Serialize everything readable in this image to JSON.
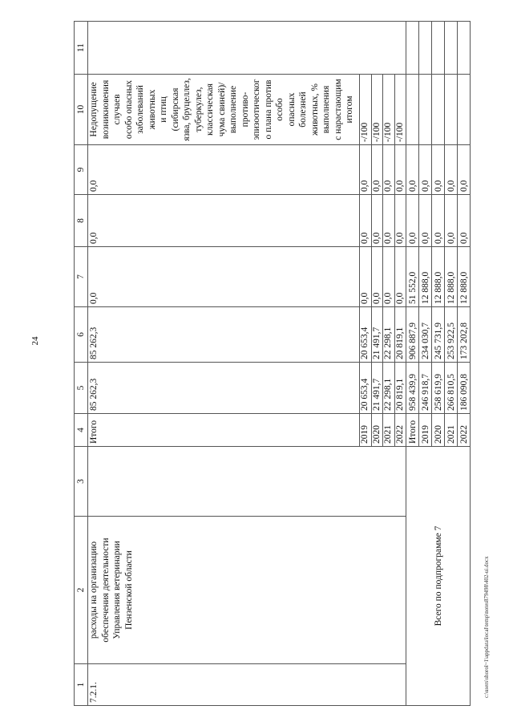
{
  "page_number": "24",
  "header": [
    "1",
    "2",
    "3",
    "4",
    "5",
    "6",
    "7",
    "8",
    "9",
    "10",
    "11"
  ],
  "item": {
    "code": "7.2.1.",
    "name": "расходы на организацию\nобеспечения деятельности\nУправления ветеринарии\nПензенской области",
    "col3": "",
    "total_label": "Итого",
    "total_values": [
      "85 262,3",
      "85 262,3",
      "0,0",
      "0,0",
      "0,0"
    ],
    "indicator": "Недопущение\nвозникновения\nслучаев\nособо опасных\nзаболеваний\nживотных\nи птиц\n(сибирская\nязва, бруцеллез,\nтуберкулез,\nклассическая\nчума свиней)/\nвыполнение\nпротиво-\nэпизоотическог\nо плана против\nособо\nопасных\nболезней\nживотных, %\nвыполнения\nс нарастающим\nитогом",
    "col11": "",
    "years": [
      {
        "year": "2019",
        "values": [
          "20 653,4",
          "20 653,4",
          "0,0",
          "0,0",
          "0,0"
        ],
        "indicator": "-/100"
      },
      {
        "year": "2020",
        "values": [
          "21 491,7",
          "21 491,7",
          "0,0",
          "0,0",
          "0,0"
        ],
        "indicator": "-/100"
      },
      {
        "year": "2021",
        "values": [
          "22 298,1",
          "22 298,1",
          "0,0",
          "0,0",
          "0,0"
        ],
        "indicator": "-/100"
      },
      {
        "year": "2022",
        "values": [
          "20 819,1",
          "20 819,1",
          "0,0",
          "0,0",
          "0,0"
        ],
        "indicator": "-/100"
      }
    ]
  },
  "subprogram_total": {
    "label": "Всего по подпрограмме 7",
    "rows": [
      {
        "year": "Итого",
        "values": [
          "958 439,9",
          "906 887,9",
          "51 552,0",
          "0,0",
          "0,0"
        ]
      },
      {
        "year": "2019",
        "values": [
          "246 918,7",
          "234 030,7",
          "12 888,0",
          "0,0",
          "0,0"
        ]
      },
      {
        "year": "2020",
        "values": [
          "258 619,9",
          "245 731,9",
          "12 888,0",
          "0,0",
          "0,0"
        ]
      },
      {
        "year": "2021",
        "values": [
          "266 810,5",
          "253 922,5",
          "12 888,0",
          "0,0",
          "0,0"
        ]
      },
      {
        "year": "2022",
        "values": [
          "186 090,8",
          "173 202,8",
          "12 888,0",
          "0,0",
          "0,0"
        ]
      }
    ]
  },
  "footer_path": "c:\\users\\shorol~1\\appdata\\local\\temp\\notes879498\\402-ui.docx"
}
